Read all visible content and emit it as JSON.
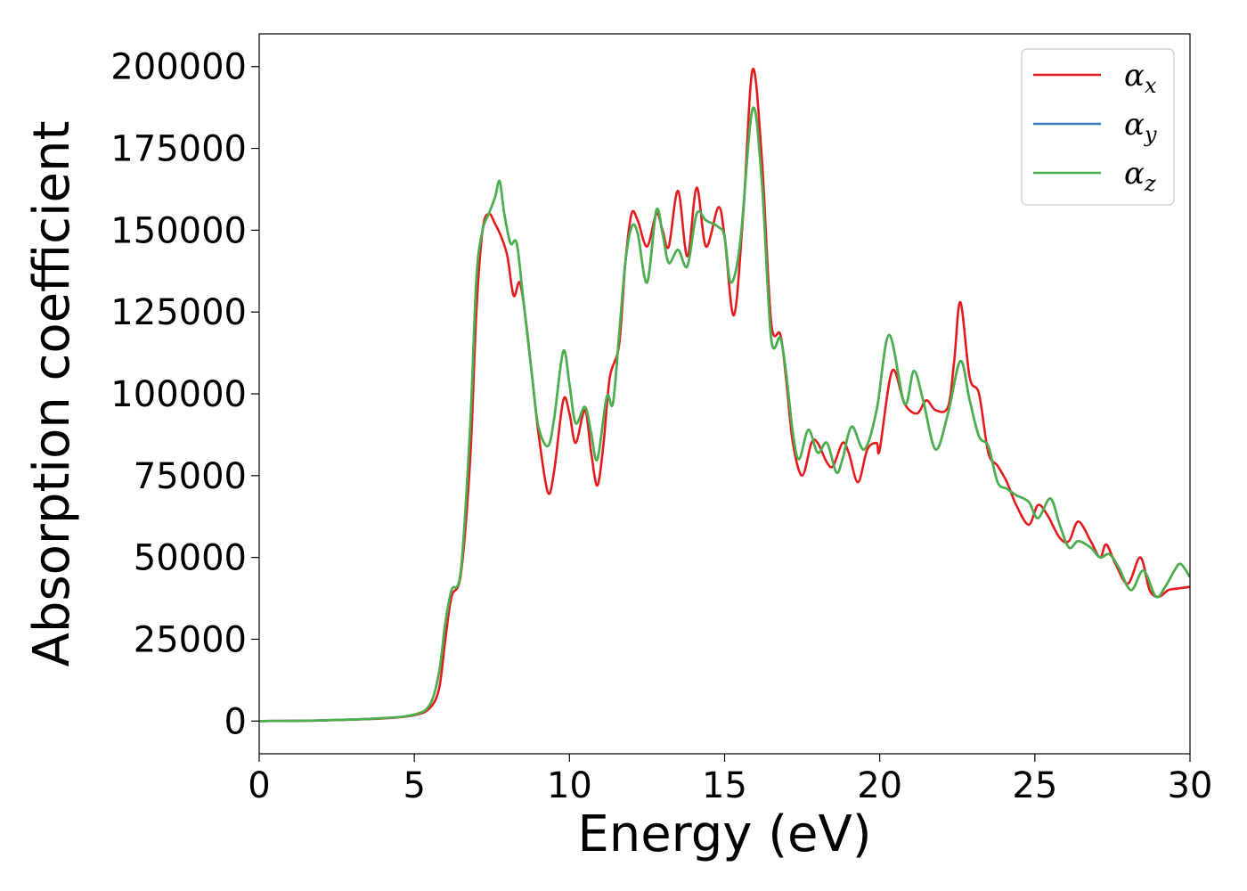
{
  "chart_data": {
    "type": "line",
    "xlabel": "Energy (eV)",
    "ylabel": "Absorption coefficient",
    "xlim": [
      0,
      30
    ],
    "ylim": [
      -10000,
      210000
    ],
    "xticks": [
      0,
      5,
      10,
      15,
      20,
      25,
      30
    ],
    "yticks": [
      0,
      25000,
      50000,
      75000,
      100000,
      125000,
      150000,
      175000,
      200000
    ],
    "grid": false,
    "legend_position": "top-right",
    "series": [
      {
        "name": "α",
        "subscript": "x",
        "color": "#e41a1c",
        "points": [
          [
            0,
            0
          ],
          [
            2,
            200
          ],
          [
            4,
            800
          ],
          [
            5,
            1800
          ],
          [
            5.5,
            4000
          ],
          [
            5.8,
            10000
          ],
          [
            6.0,
            25000
          ],
          [
            6.2,
            38000
          ],
          [
            6.5,
            45000
          ],
          [
            6.8,
            80000
          ],
          [
            7.0,
            125000
          ],
          [
            7.2,
            150000
          ],
          [
            7.4,
            155000
          ],
          [
            7.6,
            152000
          ],
          [
            7.8,
            148000
          ],
          [
            8.0,
            142000
          ],
          [
            8.2,
            130000
          ],
          [
            8.4,
            134000
          ],
          [
            8.6,
            122000
          ],
          [
            8.8,
            105000
          ],
          [
            9.0,
            88000
          ],
          [
            9.3,
            70000
          ],
          [
            9.5,
            76000
          ],
          [
            9.8,
            98000
          ],
          [
            10.0,
            94000
          ],
          [
            10.2,
            85000
          ],
          [
            10.5,
            95000
          ],
          [
            10.7,
            82000
          ],
          [
            10.9,
            72000
          ],
          [
            11.1,
            85000
          ],
          [
            11.3,
            105000
          ],
          [
            11.6,
            115000
          ],
          [
            11.8,
            140000
          ],
          [
            12.0,
            155000
          ],
          [
            12.2,
            153000
          ],
          [
            12.5,
            145000
          ],
          [
            12.8,
            155000
          ],
          [
            13.0,
            150000
          ],
          [
            13.2,
            145000
          ],
          [
            13.5,
            162000
          ],
          [
            13.8,
            142000
          ],
          [
            14.1,
            163000
          ],
          [
            14.4,
            145000
          ],
          [
            14.8,
            157000
          ],
          [
            15.0,
            148000
          ],
          [
            15.3,
            124000
          ],
          [
            15.6,
            155000
          ],
          [
            15.9,
            199000
          ],
          [
            16.2,
            172000
          ],
          [
            16.5,
            122000
          ],
          [
            16.8,
            118000
          ],
          [
            17.0,
            103000
          ],
          [
            17.2,
            85000
          ],
          [
            17.5,
            75000
          ],
          [
            17.8,
            85000
          ],
          [
            18.0,
            85000
          ],
          [
            18.3,
            79000
          ],
          [
            18.5,
            78000
          ],
          [
            18.8,
            85000
          ],
          [
            19.0,
            82000
          ],
          [
            19.3,
            73000
          ],
          [
            19.6,
            83000
          ],
          [
            19.9,
            85000
          ],
          [
            20.0,
            83000
          ],
          [
            20.4,
            107000
          ],
          [
            20.8,
            97000
          ],
          [
            21.2,
            94000
          ],
          [
            21.5,
            98000
          ],
          [
            21.8,
            95000
          ],
          [
            22.2,
            96000
          ],
          [
            22.4,
            110000
          ],
          [
            22.6,
            128000
          ],
          [
            22.9,
            105000
          ],
          [
            23.2,
            100000
          ],
          [
            23.5,
            82000
          ],
          [
            23.8,
            78000
          ],
          [
            24.1,
            73000
          ],
          [
            24.4,
            66000
          ],
          [
            24.8,
            60000
          ],
          [
            25.1,
            66000
          ],
          [
            25.4,
            63000
          ],
          [
            25.8,
            56000
          ],
          [
            26.1,
            55000
          ],
          [
            26.4,
            61000
          ],
          [
            26.8,
            55000
          ],
          [
            27.1,
            50000
          ],
          [
            27.3,
            54000
          ],
          [
            27.6,
            48000
          ],
          [
            28.0,
            42000
          ],
          [
            28.4,
            50000
          ],
          [
            28.7,
            40000
          ],
          [
            29.0,
            38000
          ],
          [
            29.3,
            40000
          ],
          [
            29.6,
            40500
          ],
          [
            30,
            41000
          ]
        ]
      },
      {
        "name": "α",
        "subscript": "y",
        "color": "#377eb8",
        "points": [
          [
            0,
            0
          ],
          [
            2,
            200
          ],
          [
            4,
            900
          ],
          [
            5,
            2000
          ],
          [
            5.5,
            5000
          ],
          [
            5.8,
            15000
          ],
          [
            6.0,
            30000
          ],
          [
            6.2,
            40000
          ],
          [
            6.5,
            46000
          ],
          [
            6.8,
            90000
          ],
          [
            7.0,
            135000
          ],
          [
            7.2,
            150000
          ],
          [
            7.4,
            155000
          ],
          [
            7.6,
            160000
          ],
          [
            7.75,
            165000
          ],
          [
            7.9,
            155000
          ],
          [
            8.1,
            146000
          ],
          [
            8.3,
            146000
          ],
          [
            8.5,
            130000
          ],
          [
            8.8,
            105000
          ],
          [
            9.0,
            90000
          ],
          [
            9.3,
            84000
          ],
          [
            9.5,
            92000
          ],
          [
            9.8,
            113000
          ],
          [
            10.0,
            103000
          ],
          [
            10.2,
            91000
          ],
          [
            10.5,
            96000
          ],
          [
            10.7,
            88000
          ],
          [
            10.9,
            80000
          ],
          [
            11.2,
            99000
          ],
          [
            11.4,
            97000
          ],
          [
            11.6,
            118000
          ],
          [
            11.8,
            140000
          ],
          [
            12.0,
            151000
          ],
          [
            12.2,
            149000
          ],
          [
            12.5,
            134000
          ],
          [
            12.8,
            156000
          ],
          [
            13.0,
            149000
          ],
          [
            13.2,
            140000
          ],
          [
            13.5,
            144000
          ],
          [
            13.8,
            139000
          ],
          [
            14.1,
            155000
          ],
          [
            14.4,
            153000
          ],
          [
            14.8,
            151000
          ],
          [
            15.0,
            148000
          ],
          [
            15.2,
            134000
          ],
          [
            15.5,
            146000
          ],
          [
            15.9,
            187000
          ],
          [
            16.2,
            165000
          ],
          [
            16.5,
            117000
          ],
          [
            16.8,
            117000
          ],
          [
            17.0,
            105000
          ],
          [
            17.2,
            88000
          ],
          [
            17.4,
            80000
          ],
          [
            17.7,
            89000
          ],
          [
            18.0,
            82000
          ],
          [
            18.3,
            85000
          ],
          [
            18.6,
            76000
          ],
          [
            18.8,
            80000
          ],
          [
            19.1,
            90000
          ],
          [
            19.5,
            83000
          ],
          [
            19.9,
            95000
          ],
          [
            20.3,
            118000
          ],
          [
            20.8,
            97000
          ],
          [
            21.1,
            107000
          ],
          [
            21.4,
            98000
          ],
          [
            21.8,
            83000
          ],
          [
            22.2,
            94000
          ],
          [
            22.6,
            110000
          ],
          [
            22.9,
            98000
          ],
          [
            23.2,
            87000
          ],
          [
            23.5,
            84000
          ],
          [
            23.8,
            73000
          ],
          [
            24.1,
            71000
          ],
          [
            24.4,
            69000
          ],
          [
            24.8,
            67000
          ],
          [
            25.1,
            62000
          ],
          [
            25.5,
            68000
          ],
          [
            25.8,
            60000
          ],
          [
            26.1,
            53000
          ],
          [
            26.4,
            55000
          ],
          [
            26.8,
            53000
          ],
          [
            27.1,
            50000
          ],
          [
            27.4,
            51000
          ],
          [
            27.7,
            47000
          ],
          [
            28.1,
            40000
          ],
          [
            28.5,
            46000
          ],
          [
            28.9,
            38000
          ],
          [
            29.2,
            41000
          ],
          [
            29.5,
            46000
          ],
          [
            29.7,
            48000
          ],
          [
            30,
            44000
          ]
        ]
      },
      {
        "name": "α",
        "subscript": "z",
        "color": "#4daf4a",
        "points": [
          [
            0,
            0
          ],
          [
            2,
            200
          ],
          [
            4,
            900
          ],
          [
            5,
            2000
          ],
          [
            5.5,
            5000
          ],
          [
            5.8,
            15000
          ],
          [
            6.0,
            30000
          ],
          [
            6.2,
            40000
          ],
          [
            6.5,
            46000
          ],
          [
            6.8,
            90000
          ],
          [
            7.0,
            135000
          ],
          [
            7.2,
            150000
          ],
          [
            7.4,
            155000
          ],
          [
            7.6,
            160000
          ],
          [
            7.75,
            165000
          ],
          [
            7.9,
            155000
          ],
          [
            8.1,
            146000
          ],
          [
            8.3,
            146000
          ],
          [
            8.5,
            130000
          ],
          [
            8.8,
            105000
          ],
          [
            9.0,
            90000
          ],
          [
            9.3,
            84000
          ],
          [
            9.5,
            92000
          ],
          [
            9.8,
            113000
          ],
          [
            10.0,
            103000
          ],
          [
            10.2,
            91000
          ],
          [
            10.5,
            96000
          ],
          [
            10.7,
            88000
          ],
          [
            10.9,
            80000
          ],
          [
            11.2,
            99000
          ],
          [
            11.4,
            97000
          ],
          [
            11.6,
            118000
          ],
          [
            11.8,
            140000
          ],
          [
            12.0,
            151000
          ],
          [
            12.2,
            149000
          ],
          [
            12.5,
            134000
          ],
          [
            12.8,
            156000
          ],
          [
            13.0,
            149000
          ],
          [
            13.2,
            140000
          ],
          [
            13.5,
            144000
          ],
          [
            13.8,
            139000
          ],
          [
            14.1,
            155000
          ],
          [
            14.4,
            153000
          ],
          [
            14.8,
            151000
          ],
          [
            15.0,
            148000
          ],
          [
            15.2,
            134000
          ],
          [
            15.5,
            146000
          ],
          [
            15.9,
            187000
          ],
          [
            16.2,
            165000
          ],
          [
            16.5,
            117000
          ],
          [
            16.8,
            117000
          ],
          [
            17.0,
            105000
          ],
          [
            17.2,
            88000
          ],
          [
            17.4,
            80000
          ],
          [
            17.7,
            89000
          ],
          [
            18.0,
            82000
          ],
          [
            18.3,
            85000
          ],
          [
            18.6,
            76000
          ],
          [
            18.8,
            80000
          ],
          [
            19.1,
            90000
          ],
          [
            19.5,
            83000
          ],
          [
            19.9,
            95000
          ],
          [
            20.3,
            118000
          ],
          [
            20.8,
            97000
          ],
          [
            21.1,
            107000
          ],
          [
            21.4,
            98000
          ],
          [
            21.8,
            83000
          ],
          [
            22.2,
            94000
          ],
          [
            22.6,
            110000
          ],
          [
            22.9,
            98000
          ],
          [
            23.2,
            87000
          ],
          [
            23.5,
            84000
          ],
          [
            23.8,
            73000
          ],
          [
            24.1,
            71000
          ],
          [
            24.4,
            69000
          ],
          [
            24.8,
            67000
          ],
          [
            25.1,
            62000
          ],
          [
            25.5,
            68000
          ],
          [
            25.8,
            60000
          ],
          [
            26.1,
            53000
          ],
          [
            26.4,
            55000
          ],
          [
            26.8,
            53000
          ],
          [
            27.1,
            50000
          ],
          [
            27.4,
            51000
          ],
          [
            27.7,
            47000
          ],
          [
            28.1,
            40000
          ],
          [
            28.5,
            46000
          ],
          [
            28.9,
            38000
          ],
          [
            29.2,
            41000
          ],
          [
            29.5,
            46000
          ],
          [
            29.7,
            48000
          ],
          [
            30,
            44000
          ]
        ]
      }
    ]
  }
}
